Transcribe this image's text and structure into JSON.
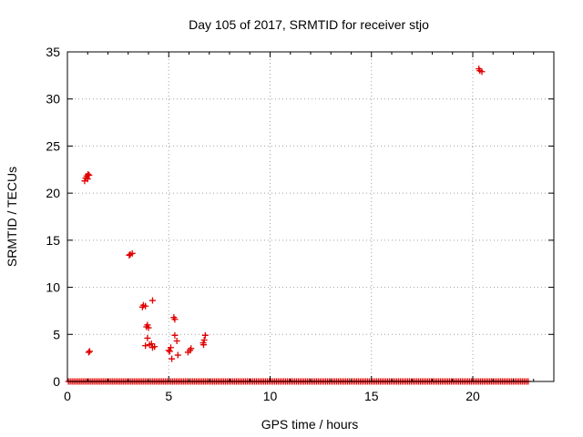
{
  "chart_data": {
    "type": "scatter",
    "title": "Day 105 of 2017, SRMTID for receiver stjo",
    "xlabel": "GPS time / hours",
    "ylabel": "SRMTID / TECUs",
    "xlim": [
      0,
      24
    ],
    "ylim": [
      0,
      35
    ],
    "xticks": [
      0,
      5,
      10,
      15,
      20
    ],
    "yticks": [
      0,
      5,
      10,
      15,
      20,
      25,
      30,
      35
    ],
    "grid": true,
    "legend": "none",
    "marker": "+",
    "colors": {
      "points": "#e00000",
      "grid": "#a0a0a0",
      "axes": "#000000"
    },
    "series": [
      {
        "baseline": {
          "x_start": 0.05,
          "x_end": 22.8,
          "y": 0.0
        },
        "points": [
          [
            0.85,
            21.3
          ],
          [
            0.9,
            21.6
          ],
          [
            0.95,
            21.8
          ],
          [
            1.0,
            21.5
          ],
          [
            1.02,
            22.0
          ],
          [
            1.07,
            21.9
          ],
          [
            1.05,
            3.1
          ],
          [
            1.1,
            3.2
          ],
          [
            3.05,
            13.4
          ],
          [
            3.1,
            13.5
          ],
          [
            3.2,
            13.6
          ],
          [
            3.7,
            7.9
          ],
          [
            3.75,
            8.1
          ],
          [
            3.85,
            8.0
          ],
          [
            3.9,
            5.8
          ],
          [
            3.95,
            6.0
          ],
          [
            4.0,
            5.7
          ],
          [
            3.95,
            4.6
          ],
          [
            3.85,
            3.8
          ],
          [
            4.05,
            3.9
          ],
          [
            4.15,
            4.0
          ],
          [
            4.2,
            3.6
          ],
          [
            4.3,
            3.7
          ],
          [
            4.2,
            8.6
          ],
          [
            5.0,
            3.3
          ],
          [
            5.1,
            3.6
          ],
          [
            5.05,
            3.2
          ],
          [
            5.15,
            2.4
          ],
          [
            5.25,
            6.8
          ],
          [
            5.3,
            6.6
          ],
          [
            5.3,
            4.9
          ],
          [
            5.4,
            4.3
          ],
          [
            5.45,
            2.8
          ],
          [
            5.95,
            3.1
          ],
          [
            6.05,
            3.3
          ],
          [
            6.1,
            3.5
          ],
          [
            6.7,
            4.1
          ],
          [
            6.75,
            4.4
          ],
          [
            6.8,
            4.9
          ],
          [
            6.72,
            3.9
          ],
          [
            20.3,
            33.2
          ],
          [
            20.35,
            33.0
          ],
          [
            20.45,
            32.9
          ]
        ]
      }
    ]
  }
}
